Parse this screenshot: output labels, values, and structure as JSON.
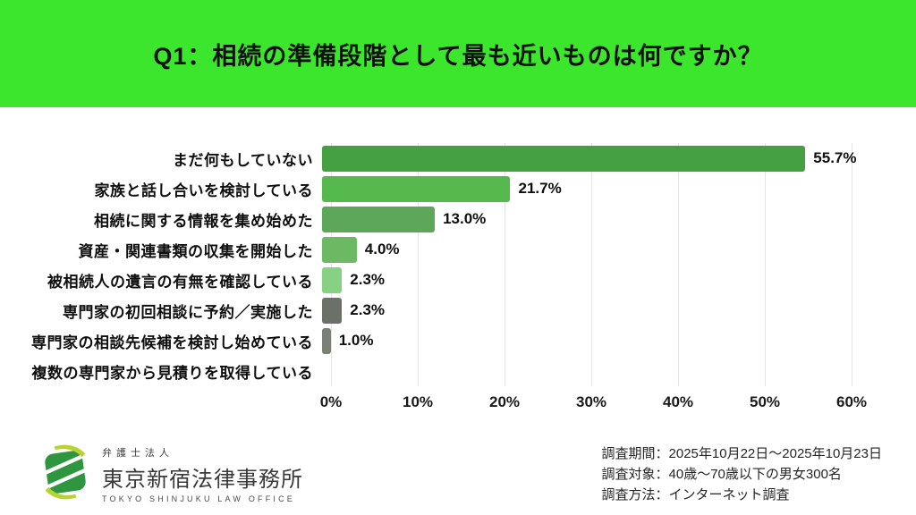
{
  "header": {
    "title": "Q1：相続の準備段階として最も近いものは何ですか？",
    "background_color": "#3CE62D",
    "text_color": "#101010"
  },
  "chart_data": {
    "type": "bar",
    "orientation": "horizontal",
    "title": "Q1：相続の準備段階として最も近いものは何ですか？",
    "categories": [
      "まだ何もしていない",
      "家族と話し合いを検討している",
      "相続に関する情報を集め始めた",
      "資産・関連書類の収集を開始した",
      "被相続人の遺言の有無を確認している",
      "専門家の初回相談に予約／実施した",
      "専門家の相談先候補を検討し始めている",
      "複数の専門家から見積りを取得している"
    ],
    "values": [
      55.7,
      21.7,
      13.0,
      4.0,
      2.3,
      2.3,
      1.0,
      0.0
    ],
    "value_labels": [
      "55.7%",
      "21.7%",
      "13.0%",
      "4.0%",
      "2.3%",
      "2.3%",
      "1.0%",
      ""
    ],
    "colors": [
      "#45a041",
      "#56b94e",
      "#5da75a",
      "#6bba63",
      "#86d182",
      "#6c7168",
      "#7b8074",
      ""
    ],
    "xlim": [
      0,
      60
    ],
    "x_ticks": [
      "0%",
      "10%",
      "20%",
      "30%",
      "40%",
      "50%",
      "60%"
    ],
    "grid": true,
    "legend": false
  },
  "footer": {
    "logo": {
      "organization_type": "弁護士法人",
      "name": "東京新宿法律事務所",
      "name_en": "TOKYO SHINJUKU LAW OFFICE",
      "icon": "leaf-logo-icon",
      "icon_green": "#2f9640",
      "icon_lime": "#b8d32f"
    },
    "survey_info": [
      "調査期間：2025年10月22日～2025年10月23日",
      "調査対象：40歳～70歳以下の男女300名",
      "調査方法：インターネット調査"
    ]
  }
}
